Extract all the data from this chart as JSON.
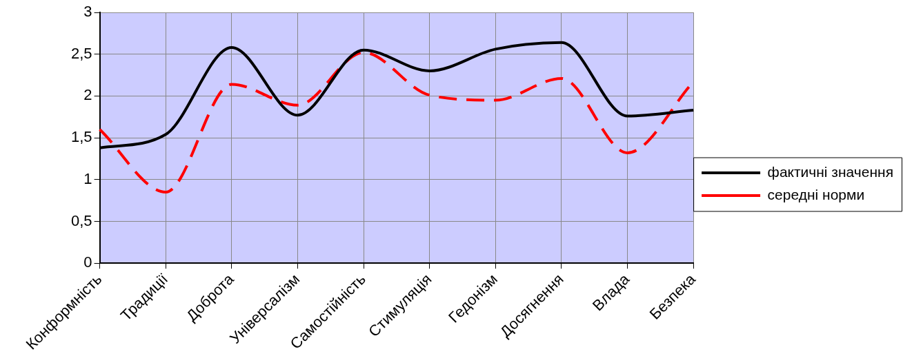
{
  "chart_data": {
    "type": "line",
    "categories": [
      "Конформність",
      "Традиції",
      "Доброта",
      "Універсалізм",
      "Самостійність",
      "Стимуляція",
      "Гедонізм",
      "Досягнення",
      "Влада",
      "Безпека"
    ],
    "series": [
      {
        "name": "фактичні значення",
        "color": "#000000",
        "line_style": "solid",
        "values": [
          1.38,
          1.54,
          2.58,
          1.77,
          2.55,
          2.3,
          2.56,
          2.64,
          1.76,
          1.83
        ]
      },
      {
        "name": "середні норми",
        "color": "#ff0000",
        "line_style": "dashed",
        "values": [
          1.6,
          0.85,
          2.14,
          1.89,
          2.52,
          2.01,
          1.95,
          2.21,
          1.32,
          2.17
        ]
      }
    ],
    "ylim": [
      0,
      3
    ],
    "yticks": [
      0,
      {
        "value": 0.5,
        "label": "0,5"
      },
      1,
      {
        "value": 1.5,
        "label": "1,5"
      },
      2,
      {
        "value": 2.5,
        "label": "2,5"
      },
      3
    ],
    "grid": true,
    "legend": "right",
    "marker": "none"
  }
}
